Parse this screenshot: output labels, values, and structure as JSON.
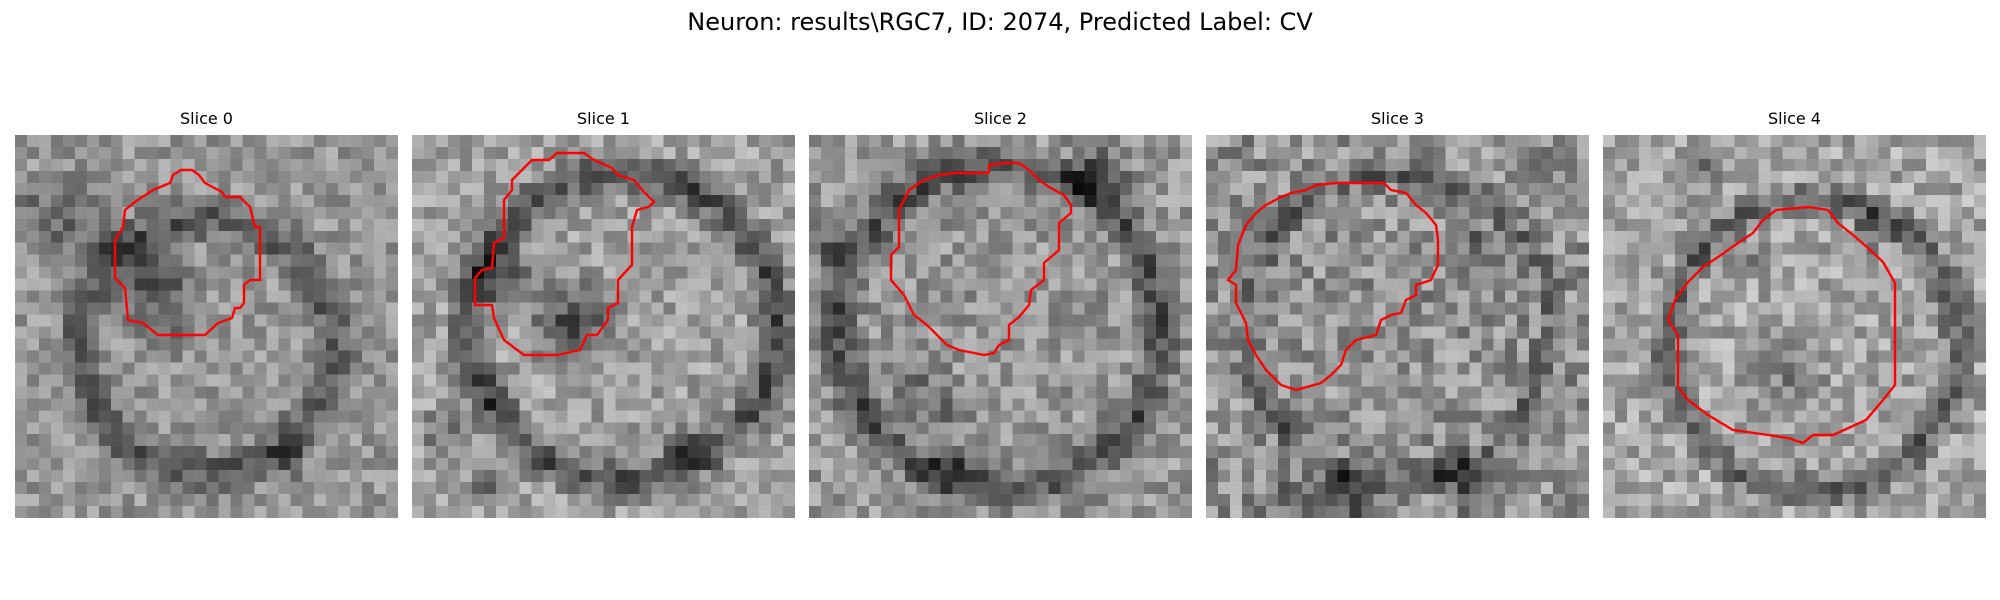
{
  "figure": {
    "title": "Neuron: results\\RGC7, ID: 2074, Predicted Label: CV",
    "contour_color": "#ff0000"
  },
  "panels": [
    {
      "title": "Slice 0"
    },
    {
      "title": "Slice 1"
    },
    {
      "title": "Slice 2"
    },
    {
      "title": "Slice 3"
    },
    {
      "title": "Slice 4"
    }
  ]
}
